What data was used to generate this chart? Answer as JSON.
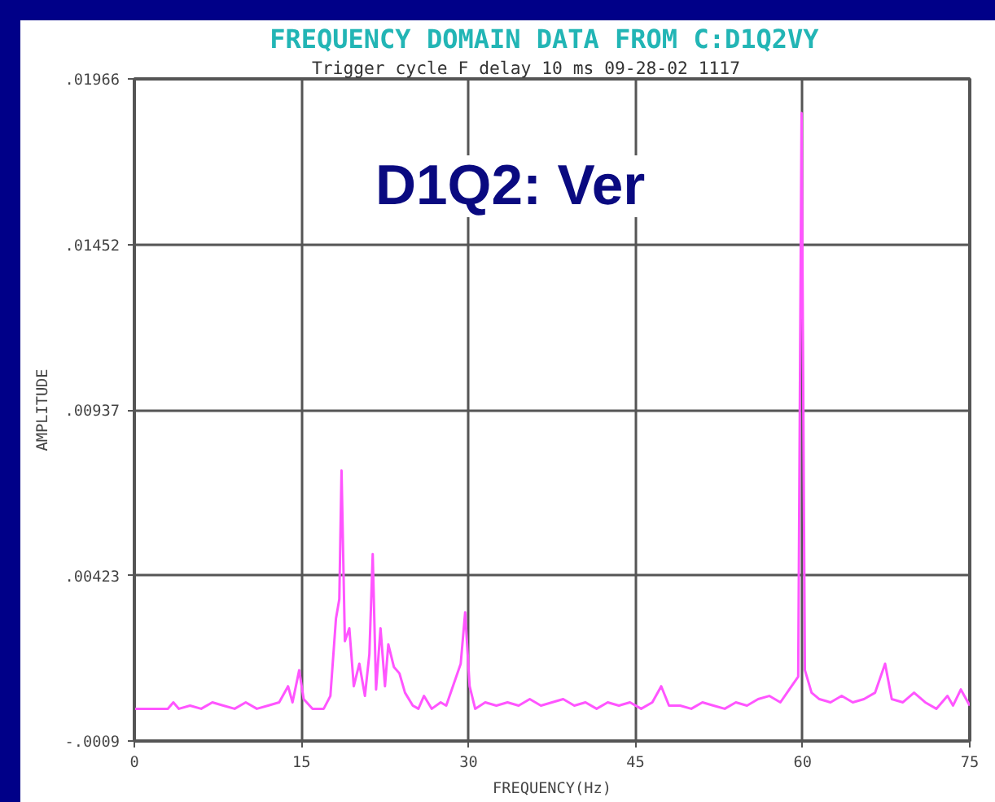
{
  "chart_data": {
    "type": "line",
    "title": "FREQUENCY DOMAIN DATA FROM  C:D1Q2VY",
    "subtitle": "Trigger cycle  F delay   10 ms  09-28-02  1117",
    "xlabel": "FREQUENCY(Hz)",
    "ylabel": "AMPLITUDE",
    "annotations": [
      "D1Q2: Ver"
    ],
    "x": [
      0,
      3,
      3.5,
      4,
      5,
      6,
      7,
      8,
      9,
      10,
      11,
      12,
      13,
      13.8,
      14.2,
      14.8,
      15.2,
      16,
      17,
      17.6,
      18.1,
      18.4,
      18.6,
      18.9,
      19.3,
      19.7,
      20.2,
      20.7,
      21.1,
      21.4,
      21.7,
      22.1,
      22.5,
      22.8,
      23.3,
      23.8,
      24.3,
      25,
      25.5,
      26,
      26.7,
      27.5,
      28,
      29.3,
      29.7,
      30.1,
      30.6,
      31.5,
      32.5,
      33.5,
      34.5,
      35.5,
      36.5,
      37.5,
      38.5,
      39.5,
      40.5,
      41.5,
      42.5,
      43.5,
      44.5,
      45.5,
      46.5,
      47.3,
      48,
      49,
      50,
      51,
      52,
      53,
      54,
      55,
      56,
      57,
      58,
      59,
      59.6,
      59.9,
      60.2,
      60.8,
      61.5,
      62.5,
      63.5,
      64.5,
      65.5,
      66.5,
      67.4,
      68,
      69,
      70,
      71,
      72,
      73,
      73.5,
      74.2,
      75
    ],
    "series": [
      {
        "color": "#ff55ff",
        "values": [
          0.0001,
          0.0001,
          0.0003,
          0.0001,
          0.0002,
          0.0001,
          0.0003,
          0.0002,
          0.0001,
          0.0003,
          0.0001,
          0.0002,
          0.0003,
          0.0008,
          0.0003,
          0.0013,
          0.0004,
          0.0001,
          0.0001,
          0.0005,
          0.0029,
          0.0035,
          0.0075,
          0.0022,
          0.0026,
          0.0008,
          0.0015,
          0.0005,
          0.0018,
          0.0049,
          0.0007,
          0.0026,
          0.0008,
          0.0021,
          0.0014,
          0.0012,
          0.0006,
          0.0002,
          0.0001,
          0.0005,
          0.0001,
          0.0003,
          0.0002,
          0.0015,
          0.0031,
          0.0008,
          0.0001,
          0.0003,
          0.0002,
          0.0003,
          0.0002,
          0.0004,
          0.0002,
          0.0003,
          0.0004,
          0.0002,
          0.0003,
          0.0001,
          0.0003,
          0.0002,
          0.0003,
          0.0001,
          0.0003,
          0.0008,
          0.0002,
          0.0002,
          0.0001,
          0.0003,
          0.0002,
          0.0001,
          0.0003,
          0.0002,
          0.0004,
          0.0005,
          0.0003,
          0.0008,
          0.0011,
          0.0186,
          0.0013,
          0.0006,
          0.0004,
          0.0003,
          0.0005,
          0.0003,
          0.0004,
          0.0006,
          0.0015,
          0.0004,
          0.0003,
          0.0006,
          0.0003,
          0.0001,
          0.0005,
          0.0002,
          0.0007,
          0.0002
        ]
      }
    ],
    "xlim": [
      0,
      75
    ],
    "xticks": [
      0,
      15,
      30,
      45,
      60,
      75
    ],
    "ylim": [
      -0.0009,
      0.01966
    ],
    "yticks": [
      {
        "value": -0.0009,
        "label": "-.0009"
      },
      {
        "value": 0.00423,
        "label": ".00423"
      },
      {
        "value": 0.00937,
        "label": ".00937"
      },
      {
        "value": 0.01452,
        "label": ".01452"
      },
      {
        "value": 0.01966,
        "label": ".01966"
      }
    ],
    "grid": true,
    "marker": "none",
    "line_style": "solid"
  }
}
